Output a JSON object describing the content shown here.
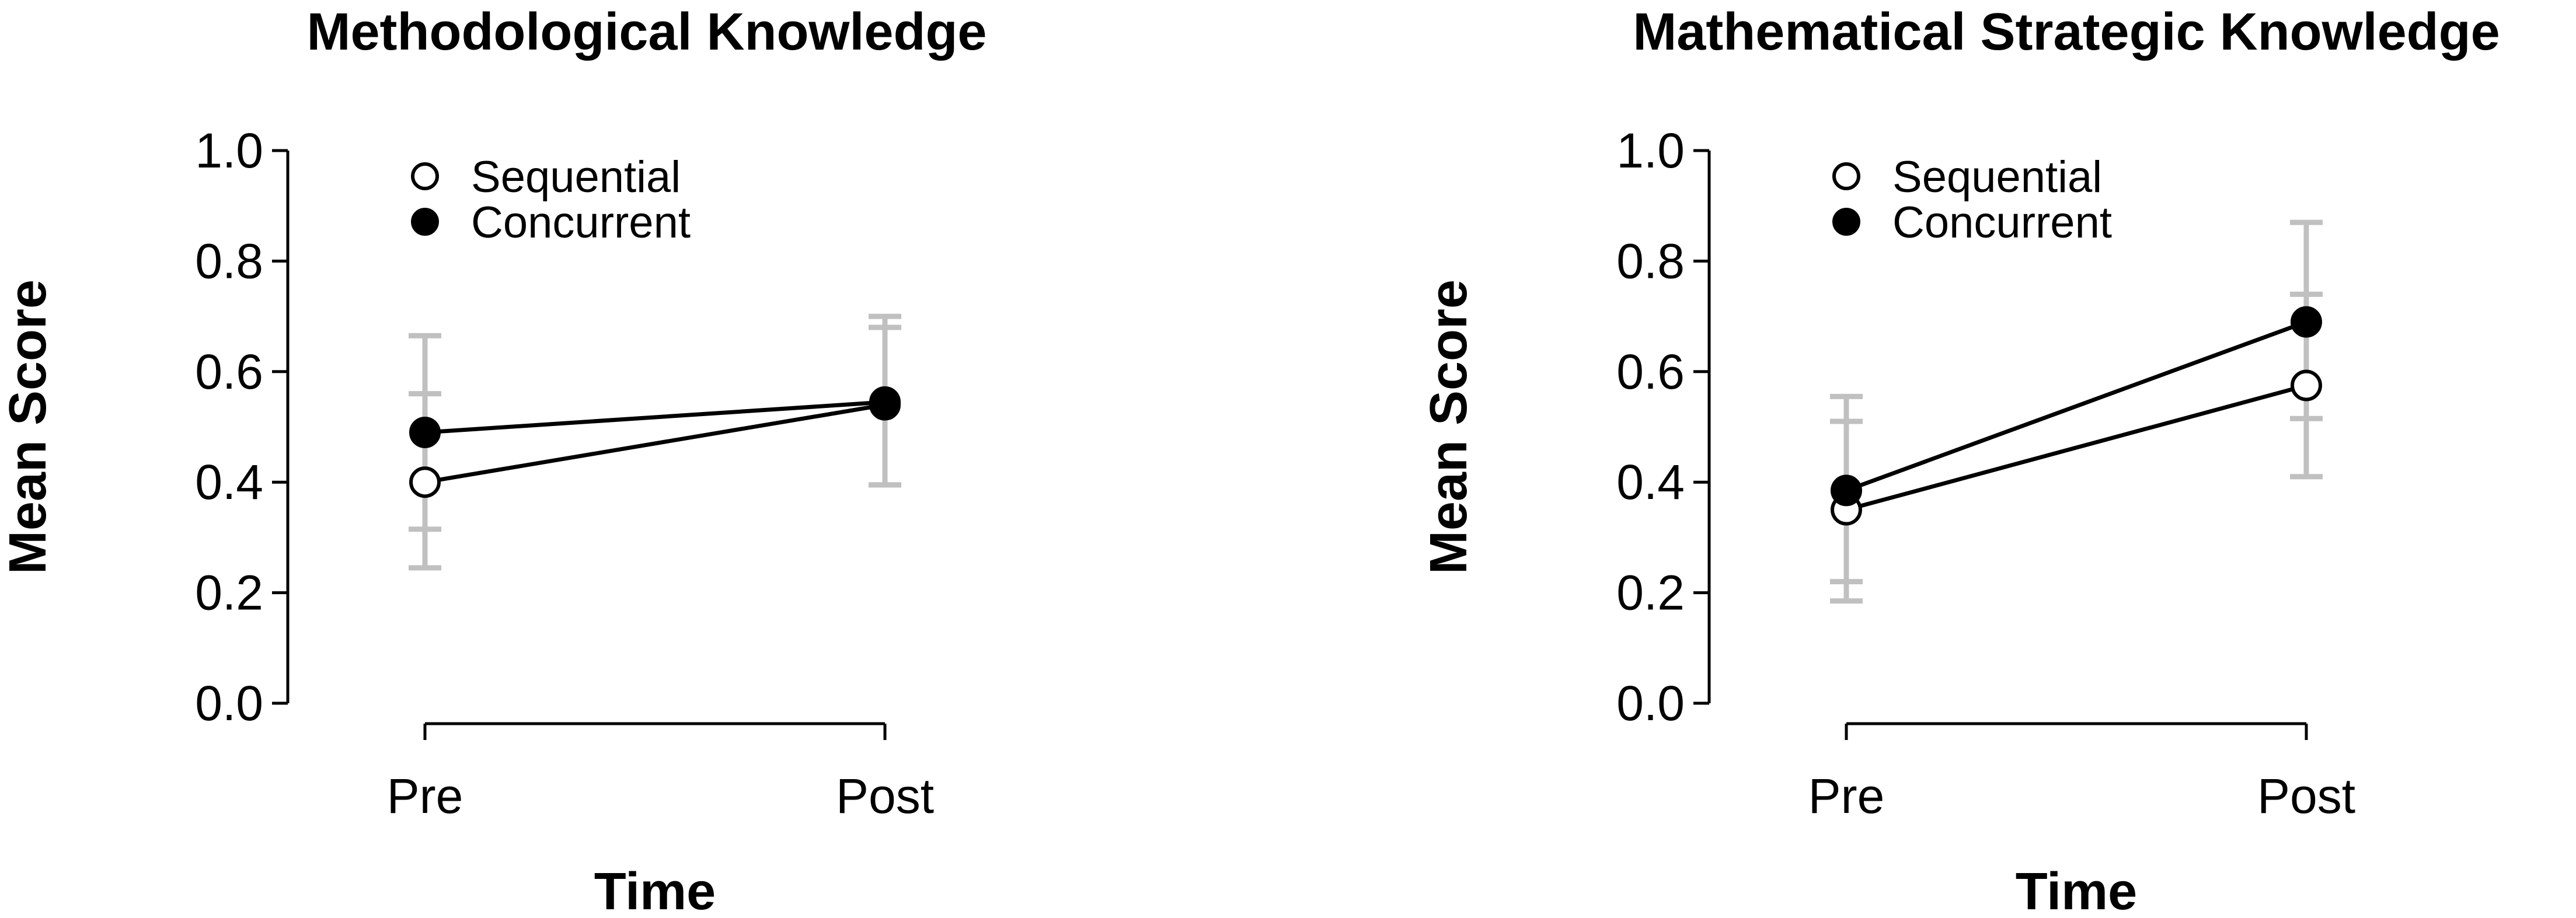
{
  "chart_data": [
    {
      "type": "line",
      "title": "Methodological Knowledge",
      "xlabel": "Time",
      "ylabel": "Mean Score",
      "categories": [
        "Pre",
        "Post"
      ],
      "ylim": [
        0.0,
        1.0
      ],
      "yticks": [
        "0.0",
        "0.2",
        "0.4",
        "0.6",
        "0.8",
        "1.0"
      ],
      "legend_position": "top-left",
      "series": [
        {
          "name": "Sequential",
          "marker": "open-circle",
          "values": [
            0.4,
            0.54
          ],
          "error_low": [
            0.245,
            0.395
          ],
          "error_high": [
            0.665,
            0.68
          ]
        },
        {
          "name": "Concurrent",
          "marker": "filled-circle",
          "values": [
            0.49,
            0.545
          ],
          "error_low": [
            0.315,
            0.395
          ],
          "error_high": [
            0.56,
            0.7
          ]
        }
      ]
    },
    {
      "type": "line",
      "title": "Mathematical Strategic Knowledge",
      "xlabel": "Time",
      "ylabel": "Mean Score",
      "categories": [
        "Pre",
        "Post"
      ],
      "ylim": [
        0.0,
        1.0
      ],
      "yticks": [
        "0.0",
        "0.2",
        "0.4",
        "0.6",
        "0.8",
        "1.0"
      ],
      "legend_position": "top-left",
      "series": [
        {
          "name": "Sequential",
          "marker": "open-circle",
          "values": [
            0.35,
            0.575
          ],
          "error_low": [
            0.185,
            0.41
          ],
          "error_high": [
            0.51,
            0.74
          ]
        },
        {
          "name": "Concurrent",
          "marker": "filled-circle",
          "values": [
            0.385,
            0.69
          ],
          "error_low": [
            0.22,
            0.515
          ],
          "error_high": [
            0.555,
            0.87
          ]
        }
      ]
    }
  ]
}
